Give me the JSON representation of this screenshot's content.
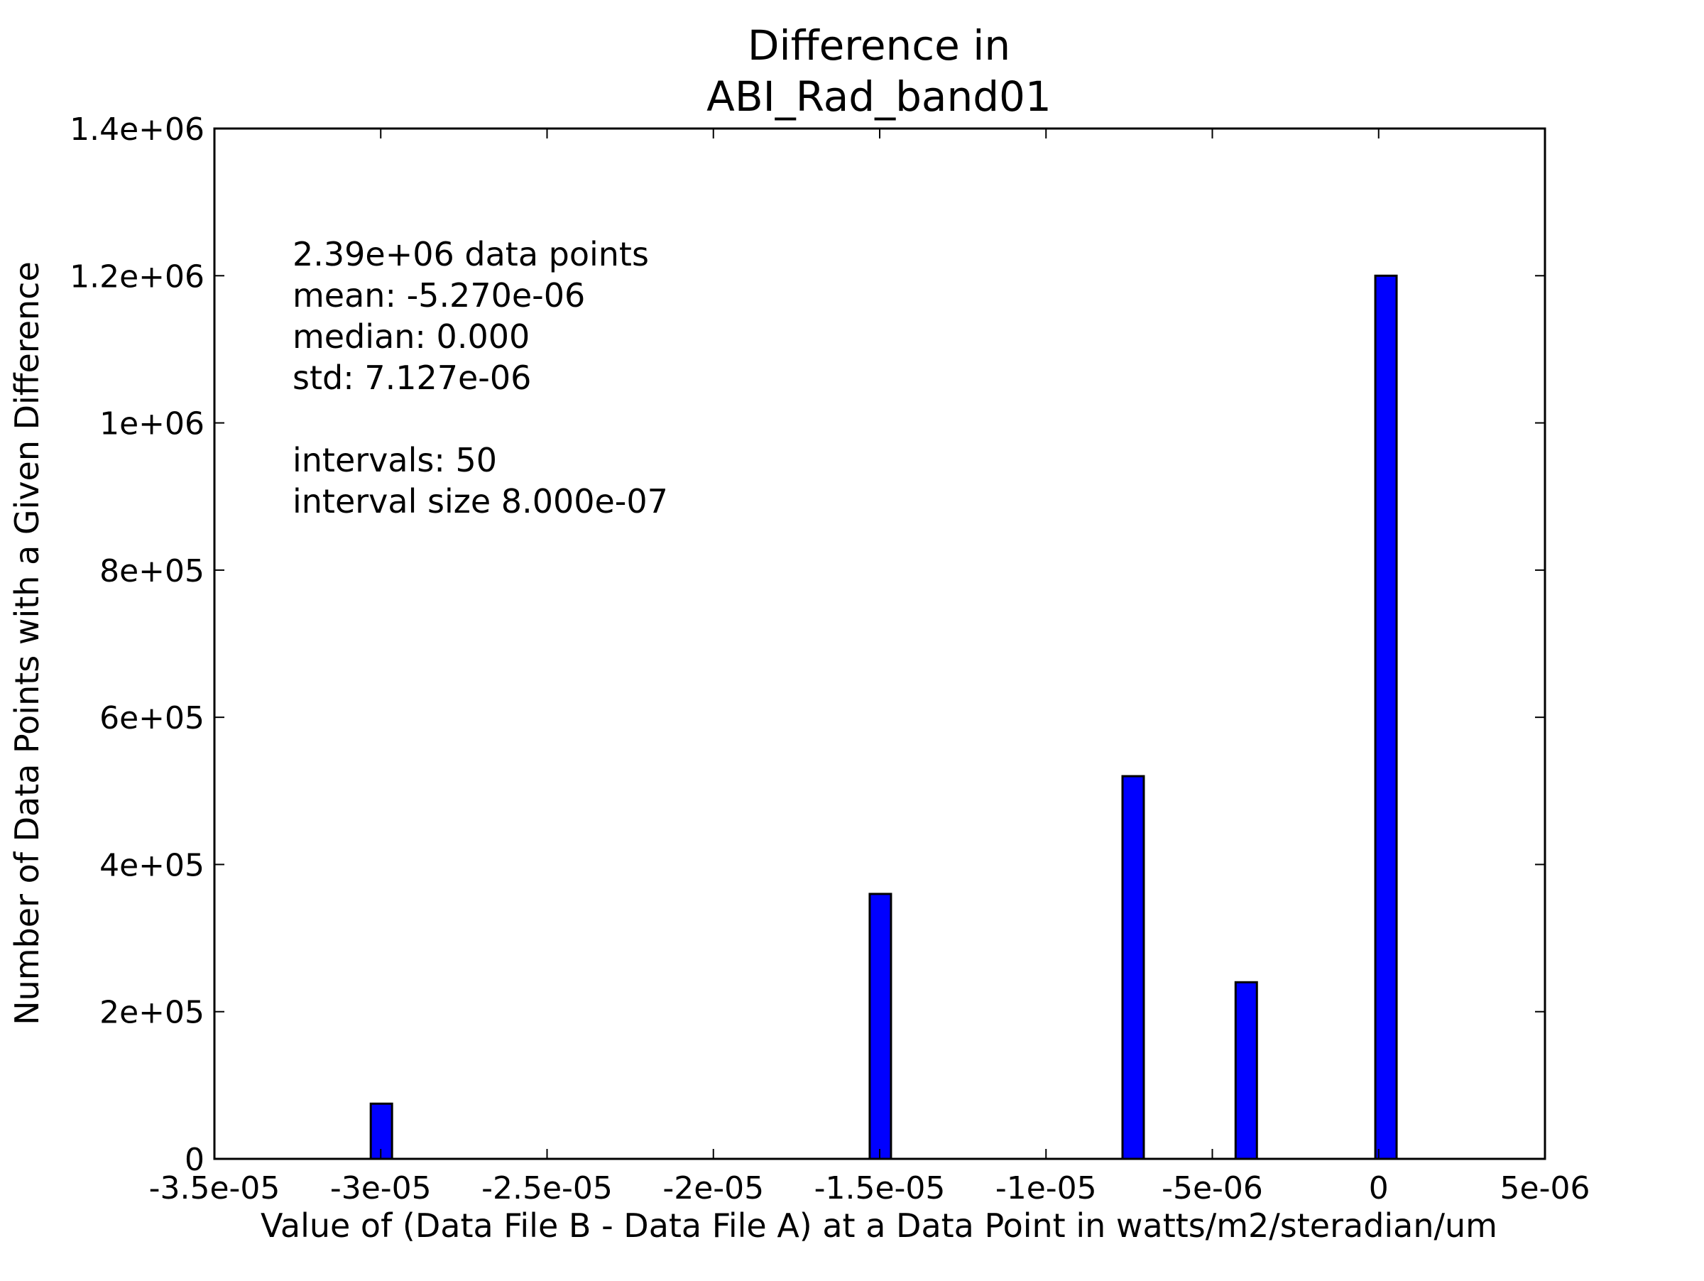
{
  "chart_data": {
    "type": "bar",
    "title": [
      "Difference in",
      "ABI_Rad_band01"
    ],
    "xlabel": "Value of (Data File B - Data File A) at a Data Point in watts/m2/steradian/um",
    "ylabel": "Number of Data Points with a Given Difference",
    "xlim": [
      -3.5e-05,
      5e-06
    ],
    "ylim": [
      0,
      1400000
    ],
    "x_ticks": [
      {
        "value": -3.5e-05,
        "label": "-3.5e-05"
      },
      {
        "value": -3e-05,
        "label": "-3e-05"
      },
      {
        "value": -2.5e-05,
        "label": "-2.5e-05"
      },
      {
        "value": -2e-05,
        "label": "-2e-05"
      },
      {
        "value": -1.5e-05,
        "label": "-1.5e-05"
      },
      {
        "value": -1e-05,
        "label": "-1e-05"
      },
      {
        "value": -5e-06,
        "label": "-5e-06"
      },
      {
        "value": 0,
        "label": "0"
      },
      {
        "value": 5e-06,
        "label": "5e-06"
      }
    ],
    "y_ticks": [
      {
        "value": 0,
        "label": "0"
      },
      {
        "value": 200000,
        "label": "2e+05"
      },
      {
        "value": 400000,
        "label": "4e+05"
      },
      {
        "value": 600000,
        "label": "6e+05"
      },
      {
        "value": 800000,
        "label": "8e+05"
      },
      {
        "value": 1000000,
        "label": "1e+06"
      },
      {
        "value": 1200000,
        "label": "1.2e+06"
      },
      {
        "value": 1400000,
        "label": "1.4e+06"
      }
    ],
    "bar_width": 6.4e-07,
    "bar_color": "#0000ff",
    "bar_edge_color": "#000000",
    "bars": [
      {
        "x": -3.03e-05,
        "value": 75000
      },
      {
        "x": -1.53e-05,
        "value": 360000
      },
      {
        "x": -7.7e-06,
        "value": 520000
      },
      {
        "x": -4.3e-06,
        "value": 240000
      },
      {
        "x": -1e-07,
        "value": 1200000
      }
    ],
    "annotation": [
      "2.39e+06 data points",
      "mean: -5.270e-06",
      "median: 0.000",
      "std: 7.127e-06",
      "",
      "intervals: 50",
      "interval size 8.000e-07"
    ],
    "grid": false,
    "legend": null
  }
}
